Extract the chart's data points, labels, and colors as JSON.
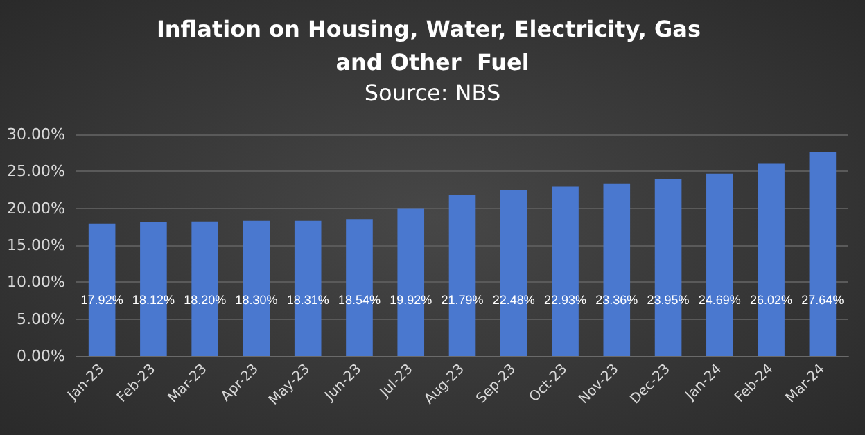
{
  "chart_data": {
    "type": "bar",
    "title": "Inflation on Housing, Water, Electricity, Gas and Other  Fuel",
    "subtitle": "Source: NBS",
    "categories": [
      "Jan-23",
      "Feb-23",
      "Mar-23",
      "Apr-23",
      "May-23",
      "Jun-23",
      "Jul-23",
      "Aug-23",
      "Sep-23",
      "Oct-23",
      "Nov-23",
      "Dec-23",
      "Jan-24",
      "Feb-24",
      "Mar-24"
    ],
    "values": [
      17.92,
      18.12,
      18.2,
      18.3,
      18.31,
      18.54,
      19.92,
      21.79,
      22.48,
      22.93,
      23.36,
      23.95,
      24.69,
      26.02,
      27.64
    ],
    "value_labels": [
      "17.92%",
      "18.12%",
      "18.20%",
      "18.30%",
      "18.31%",
      "18.54%",
      "19.92%",
      "21.79%",
      "22.48%",
      "22.93%",
      "23.36%",
      "23.95%",
      "24.69%",
      "26.02%",
      "27.64%"
    ],
    "color": "#4a78cf",
    "ylim": [
      0,
      30
    ],
    "yticks": [
      {
        "value": 0,
        "label": "0.00%"
      },
      {
        "value": 5,
        "label": "5.00%"
      },
      {
        "value": 10,
        "label": "10.00%"
      },
      {
        "value": 15,
        "label": "15.00%"
      },
      {
        "value": 20,
        "label": "20.00%"
      },
      {
        "value": 25,
        "label": "25.00%"
      },
      {
        "value": 30,
        "label": "30.00%"
      }
    ],
    "grid": "y"
  }
}
